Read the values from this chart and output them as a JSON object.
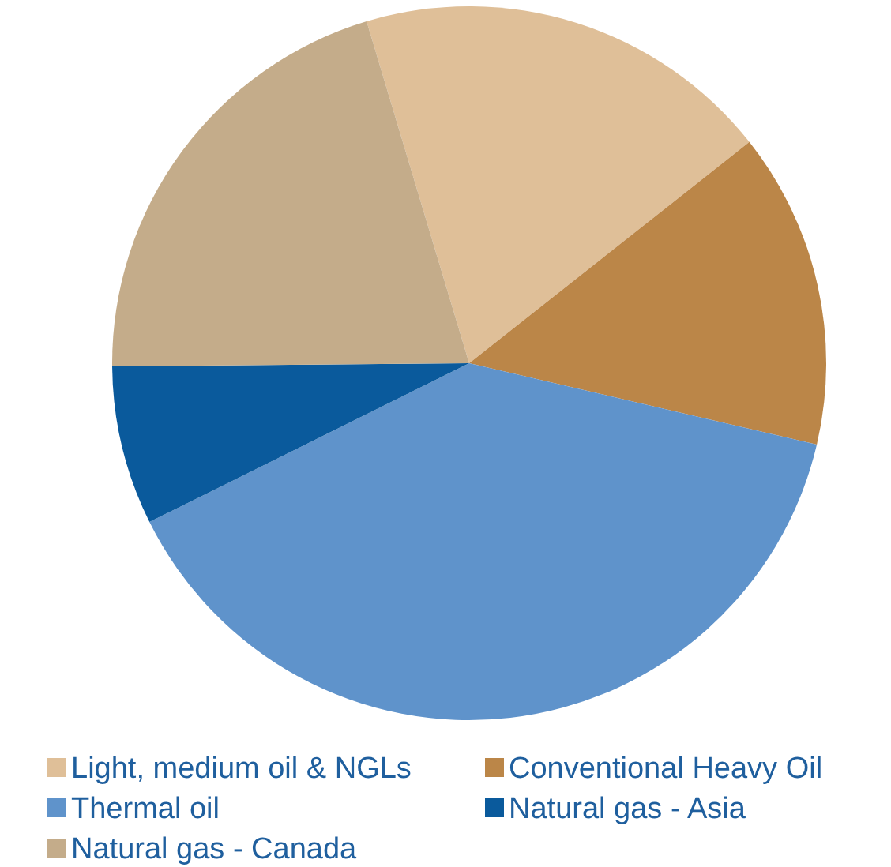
{
  "chart_data": {
    "type": "pie",
    "categories": [
      "Light, medium oil & NGLs",
      "Conventional Heavy Oil",
      "Thermal oil",
      "Natural gas - Asia",
      "Natural gas - Canada"
    ],
    "values": [
      19,
      14.3,
      39,
      7.2,
      20.5
    ],
    "colors": [
      "#dfbf98",
      "#bb8648",
      "#5f93cb",
      "#0a5a9c",
      "#c4ac8a"
    ],
    "legend": "bottom"
  }
}
